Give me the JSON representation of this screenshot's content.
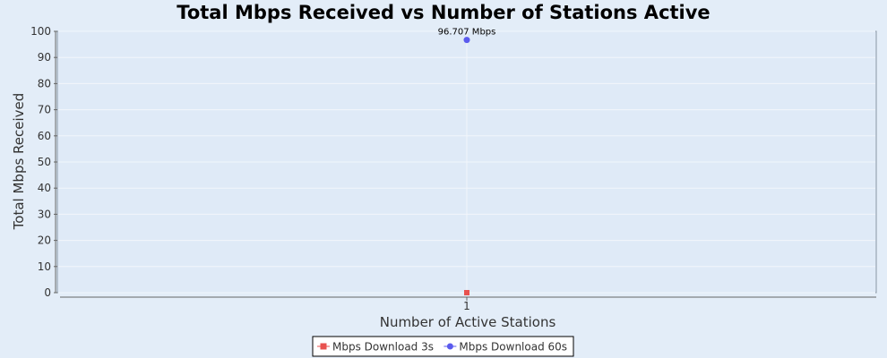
{
  "colors": {
    "background": "#e3edf8",
    "plot_background": "#dfeaf7",
    "series_3s": "#e8524f",
    "series_60s": "#5b5bee",
    "grid": "#f2f6fb"
  },
  "chart_data": {
    "type": "line",
    "title": "Total Mbps Received vs Number of Stations Active",
    "xlabel": "Number of Active Stations",
    "ylabel": "Total Mbps Received",
    "categories": [
      "1"
    ],
    "ylim": [
      0,
      100
    ],
    "yticks": [
      0,
      10,
      20,
      30,
      40,
      50,
      60,
      70,
      80,
      90,
      100
    ],
    "grid": true,
    "legend_position": "bottom",
    "series": [
      {
        "name": "Mbps Download 3s",
        "values": [
          0
        ],
        "marker": "square",
        "color": "#e8524f",
        "data_labels": [
          ""
        ]
      },
      {
        "name": "Mbps Download 60s",
        "values": [
          96.707
        ],
        "marker": "circle",
        "color": "#5b5bee",
        "data_labels": [
          "96.707 Mbps"
        ]
      }
    ]
  }
}
